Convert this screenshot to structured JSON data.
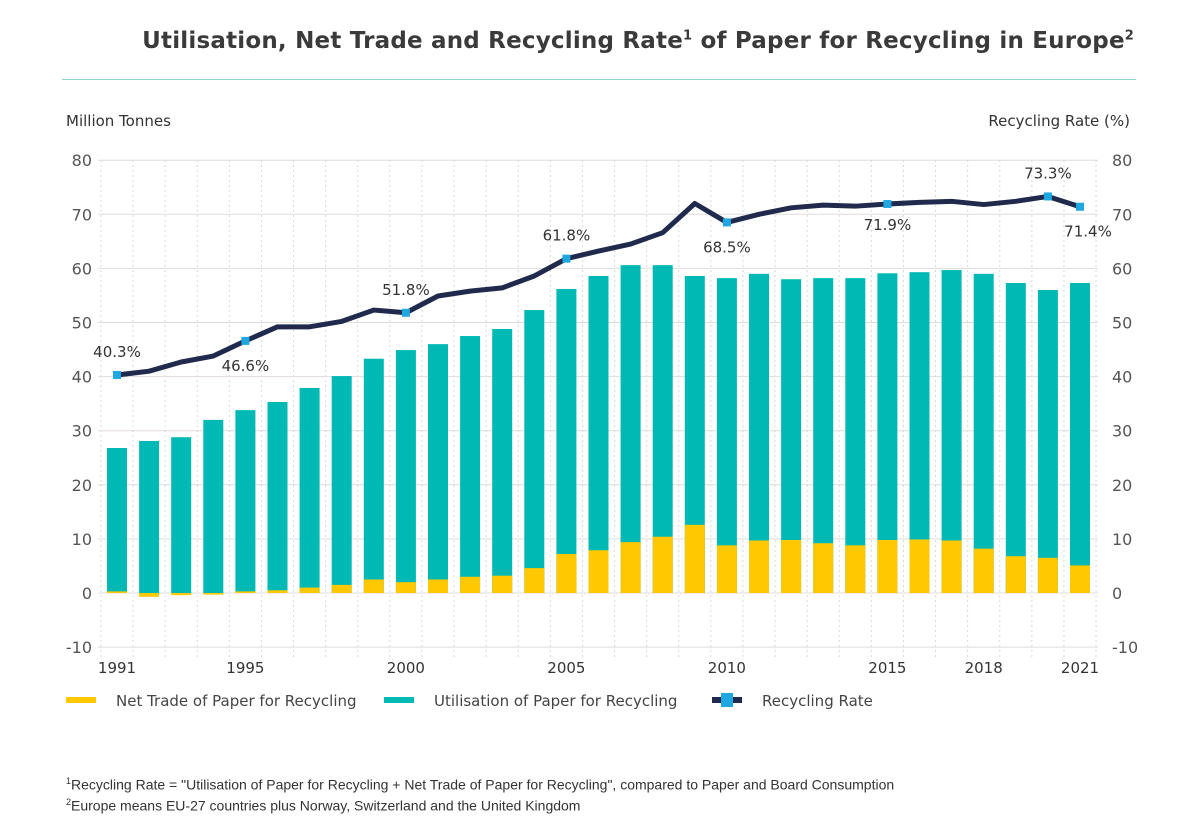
{
  "title": "Utilisation, Net Trade and Recycling Rate",
  "title_sup1": "1",
  "title_mid": " of Paper for Recycling in Europe",
  "title_sup2": "2",
  "footnotes": [
    {
      "mark": "1",
      "text": "Recycling Rate = \"Utilisation of Paper for Recycling + Net Trade of Paper for Recycling\", compared to Paper and Board Consumption"
    },
    {
      "mark": "2",
      "text": "Europe means EU-27 countries plus Norway, Switzerland and the United Kingdom"
    }
  ],
  "chart_data": {
    "type": "bar+line",
    "ylabel_left": "Million Tonnes",
    "ylabel_right": "Recycling Rate (%)",
    "ylim_left": [
      -10,
      80
    ],
    "ylim_right": [
      -10,
      80
    ],
    "yticks": [
      -10,
      0,
      10,
      20,
      30,
      40,
      50,
      60,
      70,
      80
    ],
    "grid": true,
    "legend_position": "bottom",
    "x": [
      1991,
      1992,
      1993,
      1994,
      1995,
      1996,
      1997,
      1998,
      1999,
      2000,
      2001,
      2002,
      2003,
      2004,
      2005,
      2006,
      2007,
      2008,
      2009,
      2010,
      2011,
      2012,
      2013,
      2014,
      2015,
      2016,
      2017,
      2018,
      2019,
      2020,
      2021
    ],
    "xtick_labels": [
      "1991",
      "1995",
      "2000",
      "2005",
      "2010",
      "2015",
      "2018",
      "2021"
    ],
    "series": [
      {
        "name": "Net Trade of Paper for Recycling",
        "type": "bar",
        "color": "#ffc800",
        "values": [
          0.3,
          -0.7,
          -0.4,
          -0.3,
          0.3,
          0.5,
          1.0,
          1.5,
          2.5,
          2.0,
          2.5,
          3.0,
          3.2,
          4.6,
          7.2,
          7.9,
          9.4,
          10.4,
          12.6,
          8.8,
          9.7,
          9.8,
          9.2,
          8.8,
          9.8,
          9.9,
          9.7,
          8.2,
          6.8,
          6.5,
          5.1
        ]
      },
      {
        "name": "Utilisation of Paper for Recycling",
        "type": "bar",
        "color": "#00b9b5",
        "values": [
          26.8,
          28.1,
          28.8,
          32.0,
          33.8,
          35.3,
          37.9,
          40.1,
          43.3,
          44.9,
          46.0,
          47.5,
          48.8,
          52.3,
          56.2,
          58.6,
          60.6,
          60.6,
          58.6,
          58.2,
          59.0,
          58.0,
          58.2,
          58.2,
          59.1,
          59.3,
          59.7,
          59.0,
          57.3,
          56.0,
          57.3
        ]
      },
      {
        "name": "Recycling Rate",
        "type": "line",
        "color": "#1f2a4d",
        "marker_color": "#1ea7e0",
        "values": [
          40.3,
          41.0,
          42.7,
          43.8,
          46.6,
          49.2,
          49.2,
          50.2,
          52.3,
          51.8,
          54.9,
          55.8,
          56.4,
          58.6,
          61.8,
          63.2,
          64.5,
          66.6,
          72.0,
          68.5,
          70.0,
          71.2,
          71.7,
          71.5,
          71.9,
          72.2,
          72.4,
          71.8,
          72.4,
          73.3,
          71.4
        ]
      }
    ],
    "annotations": [
      {
        "x": 1991,
        "text": "40.3%"
      },
      {
        "x": 1995,
        "text": "46.6%"
      },
      {
        "x": 2000,
        "text": "51.8%"
      },
      {
        "x": 2005,
        "text": "61.8%"
      },
      {
        "x": 2010,
        "text": "68.5%"
      },
      {
        "x": 2015,
        "text": "71.9%"
      },
      {
        "x": 2020,
        "text": "73.3%"
      },
      {
        "x": 2021,
        "text": "71.4%"
      }
    ]
  }
}
